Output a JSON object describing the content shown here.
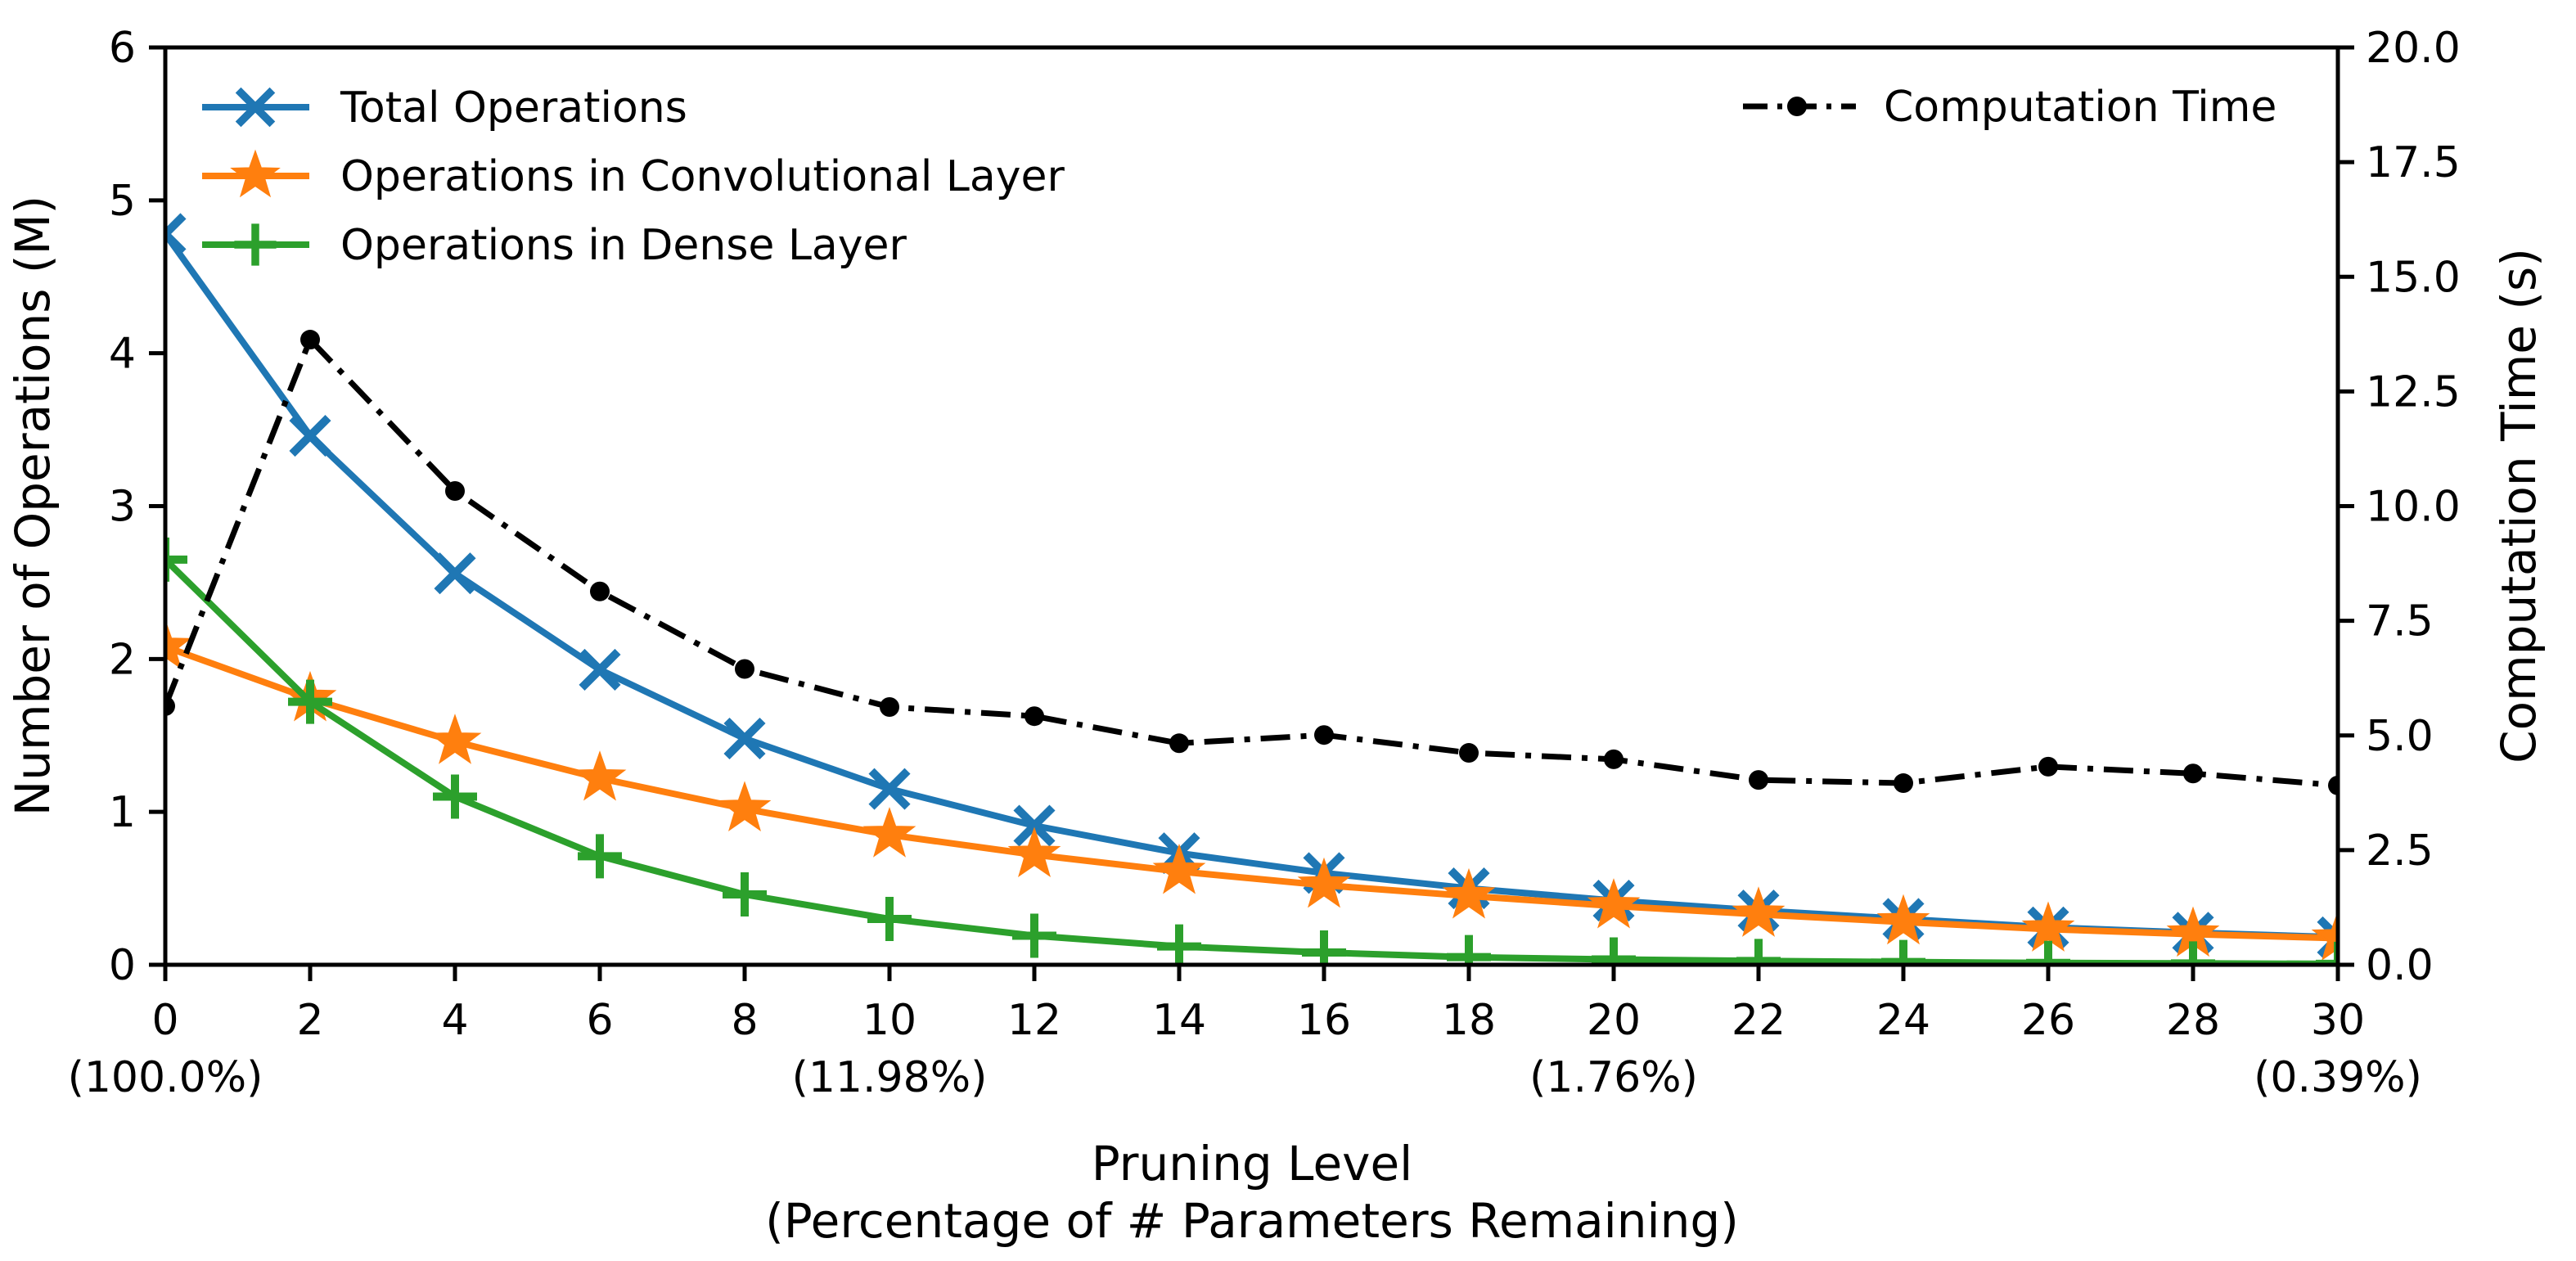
{
  "figure": {
    "background": "#ffffff",
    "frame_color": "#000000"
  },
  "chart_data": {
    "type": "line",
    "xlabel_line1": "Pruning Level",
    "xlabel_line2": "(Percentage of # Parameters Remaining)",
    "ylabel_left": "Number of Operations (M)",
    "ylabel_right": "Computation Time (s)",
    "x": [
      0,
      2,
      4,
      6,
      8,
      10,
      12,
      14,
      16,
      18,
      20,
      22,
      24,
      26,
      28,
      30
    ],
    "x_tick_labels": [
      "0",
      "2",
      "4",
      "6",
      "8",
      "10",
      "12",
      "14",
      "16",
      "18",
      "20",
      "22",
      "24",
      "26",
      "28",
      "30"
    ],
    "x_percent_annotations": [
      {
        "x": 0,
        "label": "(100.0%)"
      },
      {
        "x": 10,
        "label": "(11.98%)"
      },
      {
        "x": 20,
        "label": "(1.76%)"
      },
      {
        "x": 30,
        "label": "(0.39%)"
      }
    ],
    "left_axis": {
      "range": [
        0,
        6
      ],
      "tick_labels": [
        "0",
        "1",
        "2",
        "3",
        "4",
        "5",
        "6"
      ],
      "grid": false
    },
    "right_axis": {
      "range": [
        0,
        20
      ],
      "tick_labels": [
        "0.0",
        "2.5",
        "5.0",
        "7.5",
        "10.0",
        "12.5",
        "15.0",
        "17.5",
        "20.0"
      ],
      "grid": false
    },
    "series": [
      {
        "name": "Total Operations",
        "axis": "left",
        "color": "#1f77b4",
        "marker": "x",
        "linestyle": "solid",
        "values": [
          4.78,
          3.46,
          2.56,
          1.93,
          1.48,
          1.15,
          0.91,
          0.73,
          0.6,
          0.5,
          0.42,
          0.355,
          0.3,
          0.245,
          0.21,
          0.18
        ]
      },
      {
        "name": "Operations in Convolutional Layer",
        "axis": "left",
        "color": "#ff7f0e",
        "marker": "star",
        "linestyle": "solid",
        "values": [
          2.08,
          1.74,
          1.46,
          1.22,
          1.02,
          0.85,
          0.72,
          0.61,
          0.52,
          0.45,
          0.385,
          0.33,
          0.28,
          0.233,
          0.2,
          0.174
        ]
      },
      {
        "name": "Operations in Dense Layer",
        "axis": "left",
        "color": "#2ca02c",
        "marker": "plus",
        "linestyle": "solid",
        "values": [
          2.65,
          1.72,
          1.1,
          0.71,
          0.46,
          0.3,
          0.19,
          0.12,
          0.08,
          0.05,
          0.035,
          0.025,
          0.018,
          0.012,
          0.009,
          0.006
        ]
      },
      {
        "name": "Computation Time",
        "axis": "right",
        "color": "#000000",
        "marker": "dot",
        "linestyle": "dashdot",
        "values": [
          5.64,
          13.63,
          10.33,
          8.14,
          6.45,
          5.62,
          5.42,
          4.83,
          5.01,
          4.62,
          4.48,
          4.03,
          3.96,
          4.32,
          4.17,
          3.91
        ]
      }
    ],
    "legend_left_entries": [
      "Total Operations",
      "Operations in Convolutional Layer",
      "Operations in Dense Layer"
    ],
    "legend_right_entries": [
      "Computation Time"
    ],
    "legend_position_left": "upper left",
    "legend_position_right": "upper right"
  }
}
